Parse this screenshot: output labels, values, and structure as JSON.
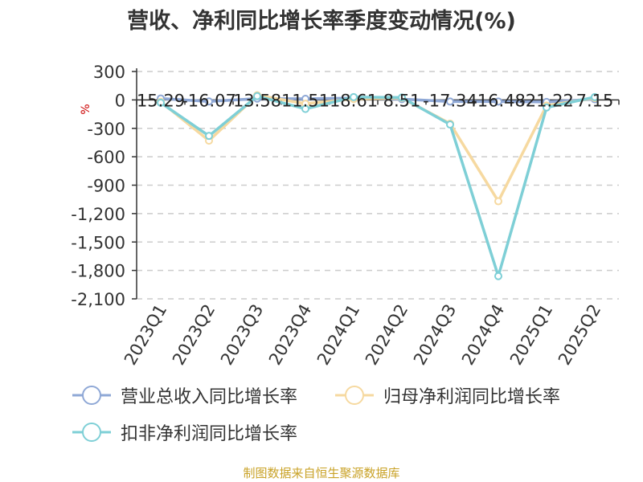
{
  "title": "营收、净利同比增长率季度变动情况(%)",
  "unit_label": "%",
  "source_text": "制图数据来自恒生聚源数据库",
  "colors": {
    "revenue": "#8fa8d6",
    "net_profit": "#f6d9a0",
    "deducted_net_profit": "#7ecfd6",
    "axis": "#333333",
    "grid": "#cccccc",
    "unit": "#cc0000"
  },
  "chart_data": {
    "type": "line",
    "title": "营收、净利同比增长率季度变动情况(%)",
    "xlabel": "",
    "ylabel": "%",
    "categories": [
      "2023Q1",
      "2023Q2",
      "2023Q3",
      "2023Q4",
      "2024Q1",
      "2024Q2",
      "2024Q3",
      "2024Q4",
      "2025Q1",
      "2025Q2"
    ],
    "ylim": [
      -2100,
      300
    ],
    "yticks": [
      300,
      0,
      -300,
      -600,
      -900,
      -1200,
      -1500,
      -1800,
      -2100
    ],
    "ytick_labels": [
      "300",
      "0",
      "-300",
      "-600",
      "-900",
      "-1,200",
      "-1,500",
      "-1,800",
      "-2,100"
    ],
    "grid": true,
    "legend_position": "bottom",
    "series": [
      {
        "name": "营业总收入同比增长率",
        "color_key": "revenue",
        "values": [
          15.29,
          -16.07,
          13.58,
          11.51,
          18.61,
          8.51,
          -17.34,
          -16.48,
          -21.22,
          7.15
        ],
        "labels": [
          "15.29",
          "-16.07",
          "13.58",
          "11.51",
          "18.61",
          "8.51",
          "-17.34",
          "-16.48",
          "-21.22",
          "7.15"
        ]
      },
      {
        "name": "归母净利润同比增长率",
        "color_key": "net_profit",
        "values": [
          -20,
          -430,
          50,
          -40,
          10,
          20,
          -250,
          -1070,
          -60,
          20
        ]
      },
      {
        "name": "扣非净利润同比增长率",
        "color_key": "deducted_net_profit",
        "values": [
          -30,
          -380,
          40,
          -95,
          30,
          25,
          -260,
          -1860,
          -80,
          30
        ]
      }
    ]
  }
}
